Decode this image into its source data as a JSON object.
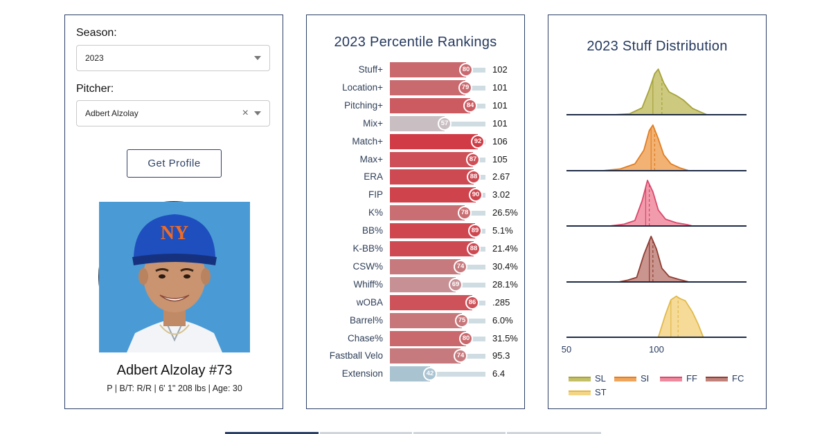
{
  "filters": {
    "season_label": "Season:",
    "season_value": "2023",
    "pitcher_label": "Pitcher:",
    "pitcher_value": "Adbert Alzolay",
    "get_profile_label": "Get Profile"
  },
  "player": {
    "name": "Adbert Alzolay #73",
    "meta": "P | B/T: R/R | 6' 1\" 208 lbs | Age: 30"
  },
  "rankings": {
    "title": "2023 Percentile Rankings",
    "rows": [
      {
        "label": "Stuff+",
        "percentile": 80,
        "value": "102",
        "color": "#c9686d"
      },
      {
        "label": "Location+",
        "percentile": 79,
        "value": "101",
        "color": "#c96a6f"
      },
      {
        "label": "Pitching+",
        "percentile": 84,
        "value": "101",
        "color": "#cc5a61"
      },
      {
        "label": "Mix+",
        "percentile": 57,
        "value": "101",
        "color": "#c9bfc2"
      },
      {
        "label": "Match+",
        "percentile": 92,
        "value": "106",
        "color": "#d03b45"
      },
      {
        "label": "Max+",
        "percentile": 87,
        "value": "105",
        "color": "#ce4f57"
      },
      {
        "label": "ERA",
        "percentile": 88,
        "value": "2.67",
        "color": "#ce4a53"
      },
      {
        "label": "FIP",
        "percentile": 90,
        "value": "3.02",
        "color": "#cf434c"
      },
      {
        "label": "K%",
        "percentile": 78,
        "value": "26.5%",
        "color": "#c96e72"
      },
      {
        "label": "BB%",
        "percentile": 89,
        "value": "5.1%",
        "color": "#cf464f"
      },
      {
        "label": "K-BB%",
        "percentile": 88,
        "value": "21.4%",
        "color": "#ce4a53"
      },
      {
        "label": "CSW%",
        "percentile": 74,
        "value": "30.4%",
        "color": "#c77a7e"
      },
      {
        "label": "Whiff%",
        "percentile": 69,
        "value": "28.1%",
        "color": "#c79095"
      },
      {
        "label": "wOBA",
        "percentile": 86,
        "value": ".285",
        "color": "#cd5259"
      },
      {
        "label": "Barrel%",
        "percentile": 75,
        "value": "6.0%",
        "color": "#c7767a"
      },
      {
        "label": "Chase%",
        "percentile": 80,
        "value": "31.5%",
        "color": "#c9686d"
      },
      {
        "label": "Fastball Velo",
        "percentile": 74,
        "value": "95.3",
        "color": "#c77a7e"
      },
      {
        "label": "Extension",
        "percentile": 42,
        "value": "6.4",
        "color": "#a9c3d1"
      }
    ]
  },
  "stuff": {
    "title": "2023 Stuff Distribution",
    "x_ticks": [
      "50",
      "100"
    ],
    "xlim": [
      50,
      150
    ],
    "pitches": [
      {
        "code": "SL",
        "fill": "#c4c068",
        "line": "#a5a23a",
        "mean": 103,
        "median": 98,
        "shape": [
          [
            77,
            0
          ],
          [
            85,
            0.02
          ],
          [
            92,
            0.15
          ],
          [
            96,
            0.55
          ],
          [
            99,
            0.9
          ],
          [
            101,
            1.0
          ],
          [
            104,
            0.7
          ],
          [
            107,
            0.5
          ],
          [
            111,
            0.42
          ],
          [
            115,
            0.32
          ],
          [
            120,
            0.14
          ],
          [
            125,
            0.05
          ],
          [
            128,
            0
          ]
        ]
      },
      {
        "code": "SI",
        "fill": "#f0a55c",
        "line": "#e07d22",
        "mean": 99,
        "median": 97,
        "shape": [
          [
            70,
            0
          ],
          [
            80,
            0.04
          ],
          [
            88,
            0.15
          ],
          [
            93,
            0.45
          ],
          [
            96,
            0.88
          ],
          [
            98,
            1.0
          ],
          [
            101,
            0.7
          ],
          [
            104,
            0.35
          ],
          [
            108,
            0.15
          ],
          [
            113,
            0.06
          ],
          [
            118,
            0
          ]
        ]
      },
      {
        "code": "FF",
        "fill": "#ee8a9e",
        "line": "#d9486b",
        "mean": 96,
        "median": 94,
        "shape": [
          [
            74,
            0
          ],
          [
            82,
            0.04
          ],
          [
            88,
            0.12
          ],
          [
            92,
            0.55
          ],
          [
            95,
            1.0
          ],
          [
            98,
            0.75
          ],
          [
            101,
            0.35
          ],
          [
            105,
            0.15
          ],
          [
            111,
            0.07
          ],
          [
            117,
            0.03
          ],
          [
            120,
            0
          ]
        ]
      },
      {
        "code": "FC",
        "fill": "#c0827a",
        "line": "#8f3c32",
        "mean": 98,
        "median": 96,
        "shape": [
          [
            79,
            0
          ],
          [
            84,
            0.04
          ],
          [
            89,
            0.1
          ],
          [
            93,
            0.6
          ],
          [
            97,
            1.0
          ],
          [
            100,
            0.72
          ],
          [
            103,
            0.3
          ],
          [
            107,
            0.12
          ],
          [
            112,
            0.06
          ],
          [
            118,
            0
          ]
        ]
      },
      {
        "code": "ST",
        "fill": "#f3d585",
        "line": "#e0b84a",
        "mean": 112,
        "median": 108,
        "shape": [
          [
            101,
            0
          ],
          [
            103,
            0.25
          ],
          [
            105,
            0.5
          ],
          [
            108,
            0.82
          ],
          [
            111,
            0.9
          ],
          [
            113,
            0.85
          ],
          [
            116,
            0.8
          ],
          [
            120,
            0.55
          ],
          [
            123,
            0.3
          ],
          [
            126,
            0
          ]
        ]
      }
    ]
  }
}
